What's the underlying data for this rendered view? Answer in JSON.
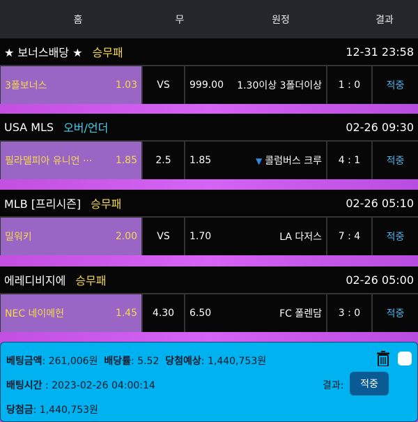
{
  "header": {
    "home": "홈",
    "draw": "무",
    "away": "원정",
    "result": "결과"
  },
  "games": [
    {
      "league": "★ 보너스배당 ★",
      "type": "승무패",
      "type_color": "#f5d94b",
      "time": "12-31 23:58",
      "home": "3폴보너스",
      "home_odds": "1.03",
      "draw": "VS",
      "away_odds": "999.00",
      "away": "1.30이상 3폴더이상",
      "score": "1 : 0",
      "result": "적중"
    },
    {
      "league": "USA MLS",
      "type": "오버/언더",
      "type_color": "#3fd0f0",
      "time": "02-26 09:30",
      "home": "필라델피아 유니언 ···",
      "home_odds": "1.85",
      "draw": "2.5",
      "away_odds": "1.85",
      "away": "콜럼버스 크루",
      "away_icon": "triangle-down",
      "score": "4 : 1",
      "result": "적중"
    },
    {
      "league": "MLB [프리시즌]",
      "type": "승무패",
      "type_color": "#f5d94b",
      "time": "02-26 05:10",
      "home": "밀워키",
      "home_odds": "2.00",
      "draw": "VS",
      "away_odds": "1.70",
      "away": "LA 다저스",
      "score": "7 : 4",
      "result": "적중"
    },
    {
      "league": "에레디비지에",
      "type": "승무패",
      "type_color": "#f5d94b",
      "time": "02-26 05:00",
      "home": "NEC 네이메헌",
      "home_odds": "1.45",
      "draw": "4.30",
      "away_odds": "6.50",
      "away": "FC 폴렌담",
      "score": "3 : 0",
      "result": "적중"
    }
  ],
  "summary": {
    "bet_label": "베팅금액",
    "bet": ": 261,006원",
    "odds_label": "배당률",
    "odds": ": 5.52",
    "expected_label": "당첨예상",
    "expected": ": 1,440,753원",
    "time_label": "배팅시간",
    "time": " : 2023-02-26 04:00:14",
    "result_label": "결과:",
    "result": "적중",
    "win_label": "당첨금",
    "win": ": 1,440,753원"
  }
}
